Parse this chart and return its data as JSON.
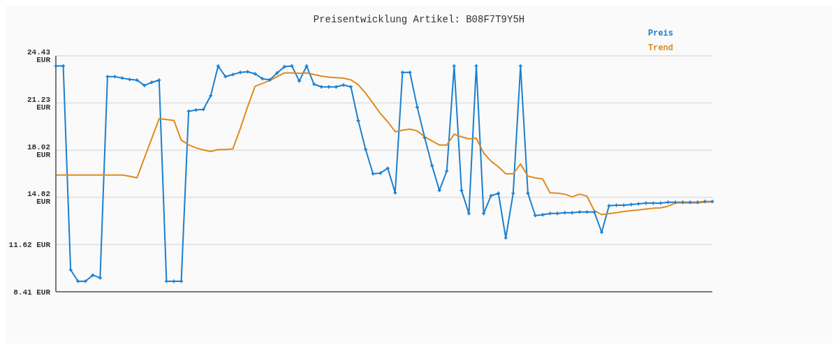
{
  "chart_data": {
    "type": "line",
    "title": "Preisentwicklung Artikel: B08F7T9Y5H",
    "categories": [
      null,
      null,
      null,
      null,
      null,
      null,
      null,
      null,
      null,
      null,
      null,
      null,
      null,
      null,
      null,
      null,
      null,
      null,
      null,
      null,
      null,
      null,
      null,
      null,
      null,
      null,
      null,
      null,
      null,
      null,
      null,
      null,
      null,
      null,
      null,
      null,
      null,
      null,
      null,
      null,
      null,
      null,
      null,
      null,
      null,
      null,
      null,
      null,
      null,
      null,
      null,
      null,
      null,
      null,
      null,
      null,
      null,
      null,
      null,
      null,
      null,
      null,
      null,
      null,
      null,
      null,
      null,
      null,
      null,
      null,
      null,
      null,
      null,
      null,
      null,
      null,
      null,
      null,
      null,
      null,
      null,
      null,
      null,
      null,
      null,
      null,
      null,
      null,
      null,
      null
    ],
    "series": [
      {
        "name": "Preis",
        "color": "#1a7fcf",
        "marker": "cross",
        "values": [
          23.74,
          23.74,
          9.9,
          9.12,
          9.12,
          9.54,
          9.35,
          23.02,
          23.02,
          22.92,
          22.83,
          22.78,
          22.42,
          22.63,
          22.78,
          9.12,
          9.12,
          9.12,
          20.66,
          20.76,
          20.79,
          21.73,
          23.74,
          23.02,
          23.16,
          23.31,
          23.35,
          23.21,
          22.88,
          22.8,
          23.27,
          23.69,
          23.74,
          22.72,
          23.74,
          22.51,
          22.32,
          22.32,
          22.32,
          22.45,
          22.32,
          20.03,
          18.07,
          16.42,
          16.47,
          16.8,
          15.13,
          23.31,
          23.31,
          20.94,
          18.88,
          16.97,
          15.29,
          16.61,
          23.74,
          15.29,
          13.72,
          23.74,
          13.72,
          14.93,
          15.1,
          12.07,
          15.09,
          23.74,
          15.1,
          13.59,
          13.64,
          13.73,
          13.73,
          13.78,
          13.78,
          13.83,
          13.83,
          13.83,
          12.45,
          14.25,
          14.29,
          14.29,
          14.33,
          14.38,
          14.43,
          14.43,
          14.43,
          14.49,
          14.49,
          14.49,
          14.49,
          14.49,
          14.54,
          14.54
        ]
      },
      {
        "name": "Trend",
        "color": "#e08a1e",
        "marker": "none",
        "values": [
          16.34,
          16.34,
          16.34,
          16.34,
          16.34,
          16.34,
          16.34,
          16.34,
          16.34,
          16.34,
          16.25,
          16.15,
          17.49,
          18.82,
          20.16,
          20.1,
          20.05,
          18.7,
          18.39,
          18.18,
          18.04,
          17.94,
          18.07,
          18.07,
          18.12,
          19.48,
          20.98,
          22.36,
          22.55,
          22.75,
          23.02,
          23.27,
          23.27,
          23.24,
          23.27,
          23.16,
          23.06,
          22.98,
          22.95,
          22.91,
          22.8,
          22.47,
          21.89,
          21.21,
          20.51,
          19.95,
          19.28,
          19.38,
          19.45,
          19.33,
          18.93,
          18.65,
          18.37,
          18.37,
          19.11,
          18.93,
          18.79,
          18.84,
          17.83,
          17.28,
          16.89,
          16.42,
          16.42,
          17.09,
          16.26,
          16.14,
          16.08,
          15.13,
          15.11,
          15.04,
          14.85,
          15.04,
          14.9,
          13.91,
          13.65,
          13.72,
          13.78,
          13.86,
          13.92,
          13.97,
          14.03,
          14.08,
          14.11,
          14.22,
          14.44,
          14.44,
          14.44,
          14.44,
          14.5,
          14.5
        ]
      }
    ],
    "ylim": [
      8.41,
      24.43
    ],
    "yticks": [
      {
        "value": 8.41,
        "label": "8.41 EUR"
      },
      {
        "value": 11.62,
        "label": "11.62 EUR"
      },
      {
        "value": 14.82,
        "label": "14.82 EUR"
      },
      {
        "value": 18.02,
        "label": "18.02 EUR"
      },
      {
        "value": 21.23,
        "label": "21.23 EUR"
      },
      {
        "value": 24.43,
        "label": "24.43 EUR"
      }
    ],
    "grid": "y",
    "legend": "top right",
    "tick_labels": "y",
    "line_style": "solid"
  }
}
